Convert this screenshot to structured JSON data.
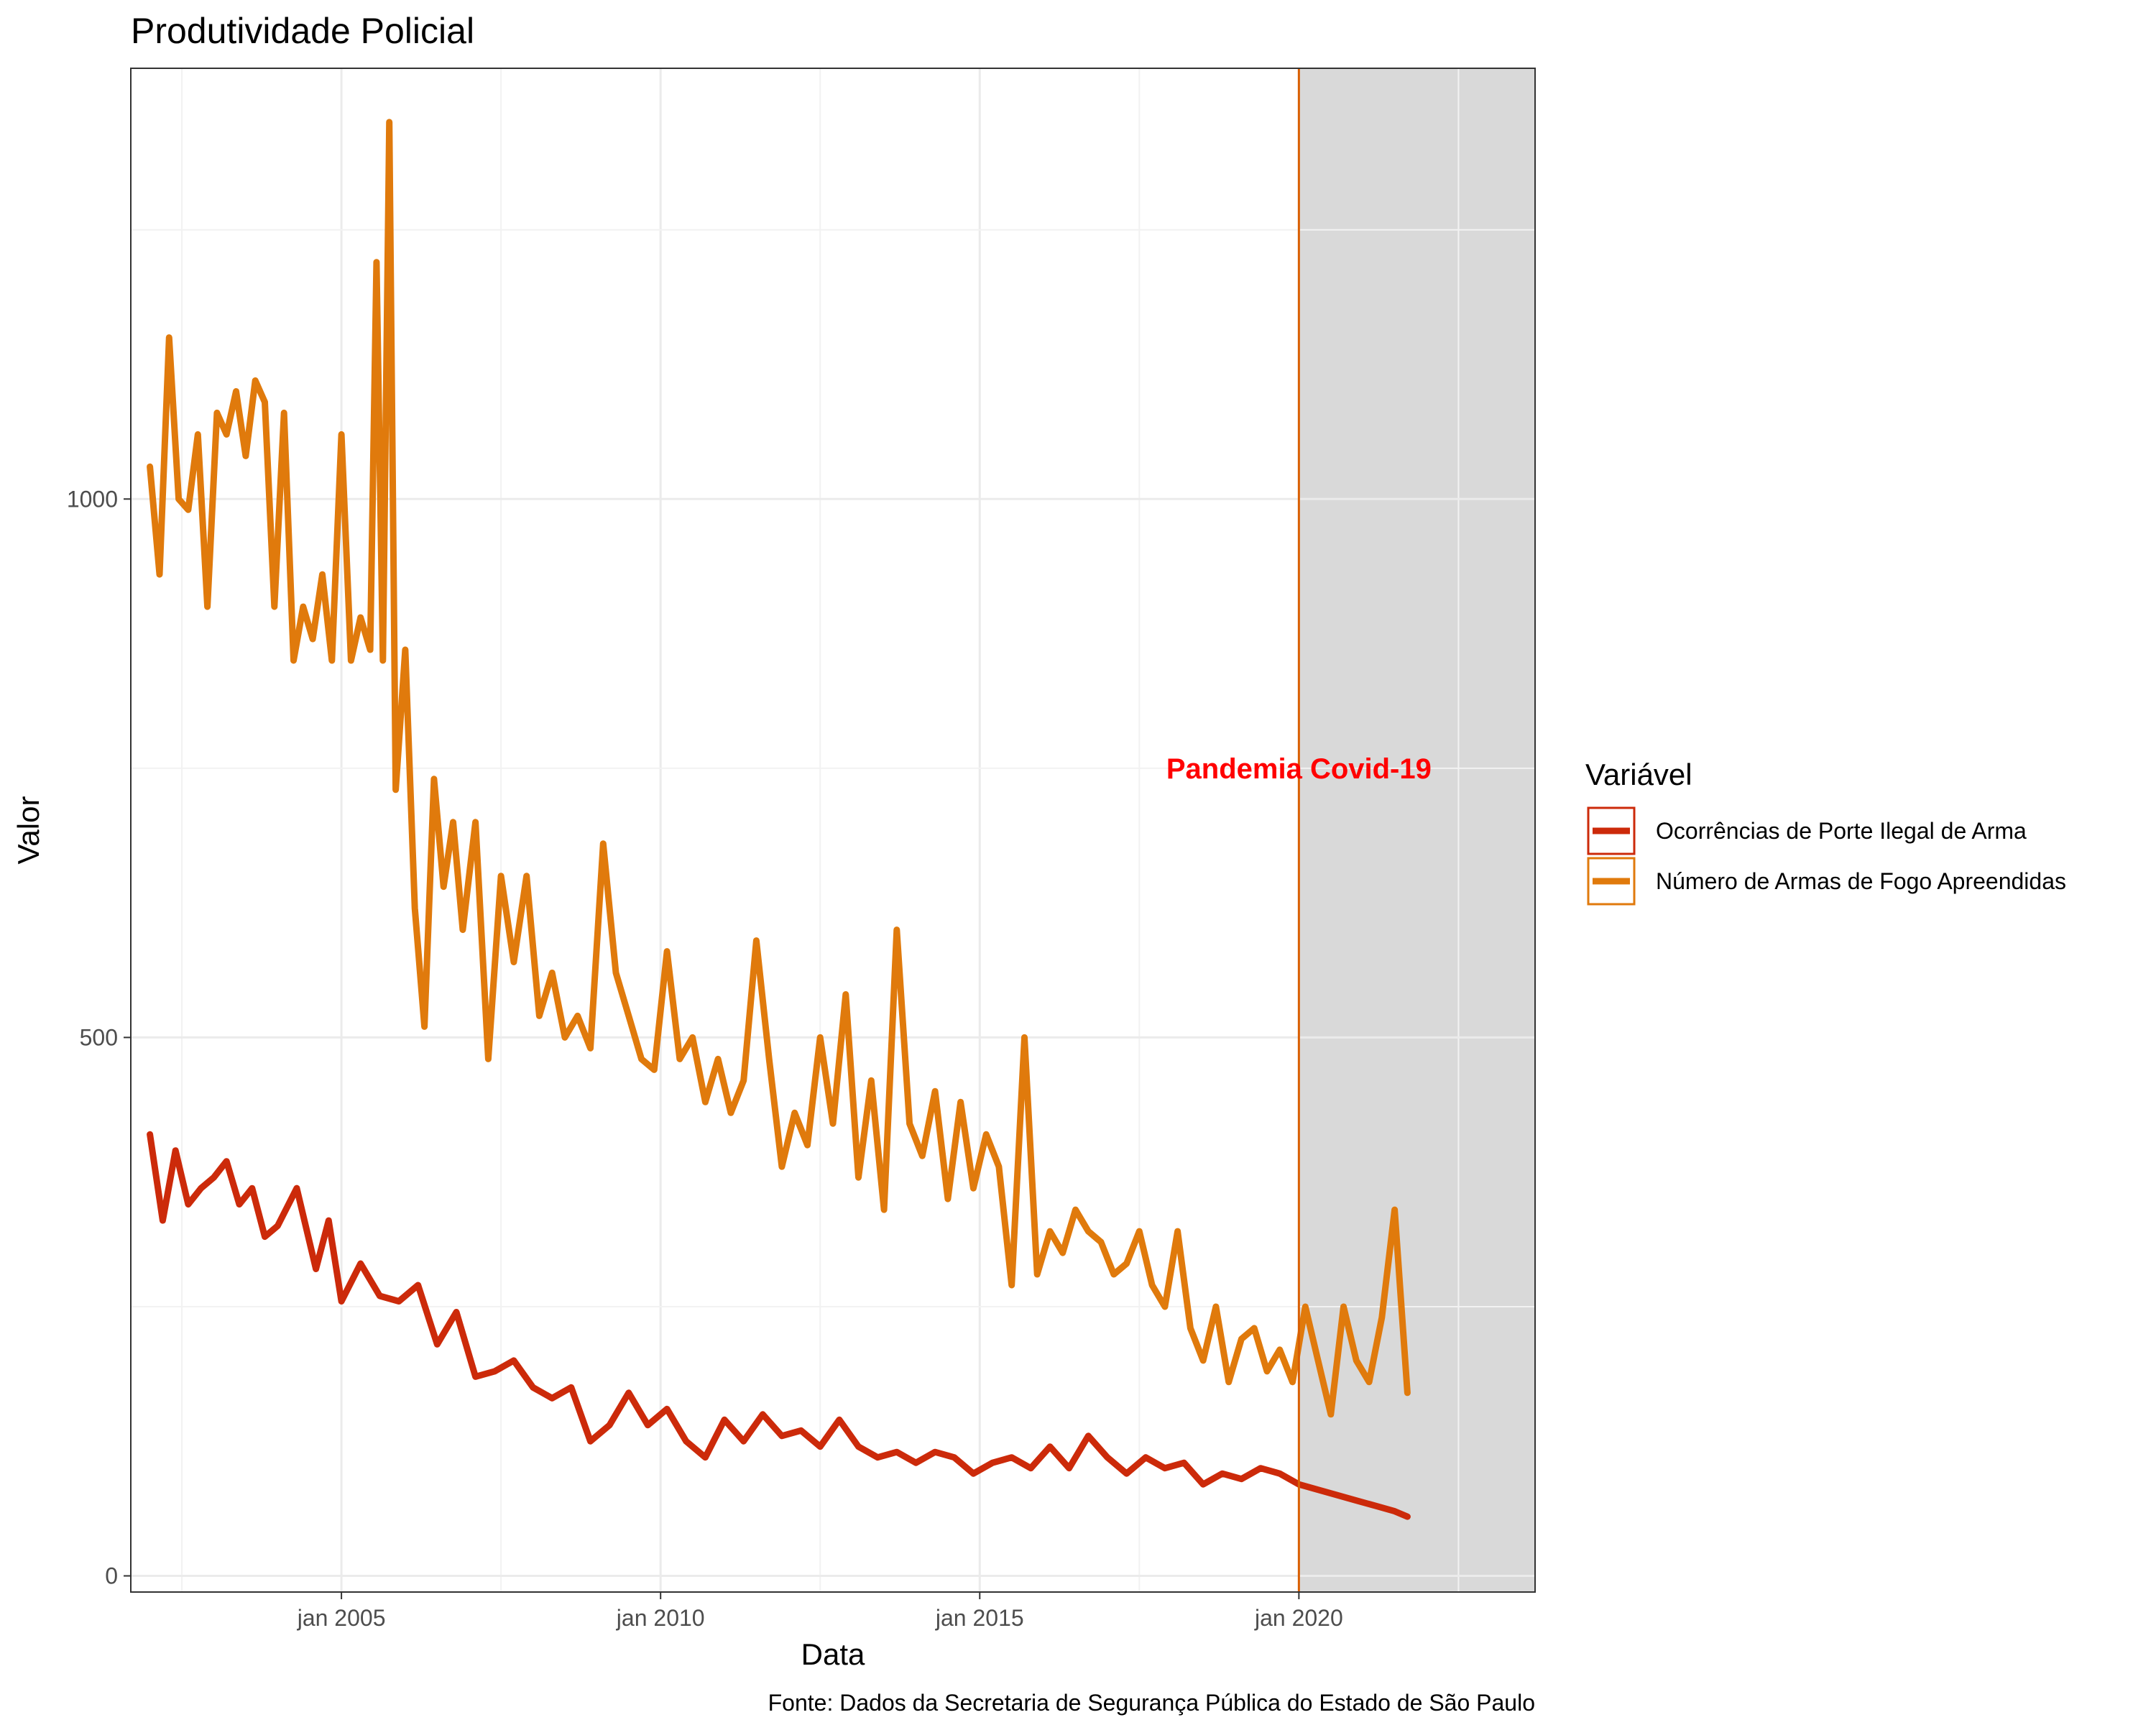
{
  "chart_data": {
    "type": "line",
    "title": "Produtividade Policial",
    "xlabel": "Data",
    "ylabel": "Valor",
    "caption": "Fonte: Dados da Secretaria de Segurança Pública do Estado de São Paulo",
    "legend_title": "Variável",
    "legend_position": "right",
    "grid": true,
    "xlim": [
      2001.7,
      2023.7
    ],
    "ylim": [
      -15,
      1400
    ],
    "x_ticks": [
      {
        "value": 2005,
        "label": "jan 2005"
      },
      {
        "value": 2010,
        "label": "jan 2010"
      },
      {
        "value": 2015,
        "label": "jan 2015"
      },
      {
        "value": 2020,
        "label": "jan 2020"
      }
    ],
    "y_ticks": [
      {
        "value": 0,
        "label": "0"
      },
      {
        "value": 500,
        "label": "500"
      },
      {
        "value": 1000,
        "label": "1000"
      }
    ],
    "shaded_region": {
      "x_start": 2020.0,
      "x_end": 2023.7,
      "color": "#d9d9d9"
    },
    "vline": {
      "x": 2020.0,
      "color": "#d95f02"
    },
    "annotation": {
      "text": "Pandemia Covid-19",
      "x": 2020.0,
      "y": 750,
      "color": "#ff0000"
    },
    "series": [
      {
        "name": "Ocorrências de Porte Ilegal de Arma",
        "color": "#cc2a0a",
        "x": [
          2002.0,
          2002.2,
          2002.4,
          2002.6,
          2002.8,
          2003.0,
          2003.2,
          2003.4,
          2003.6,
          2003.8,
          2004.0,
          2004.3,
          2004.6,
          2004.8,
          2005.0,
          2005.3,
          2005.6,
          2005.9,
          2006.2,
          2006.5,
          2006.8,
          2007.1,
          2007.4,
          2007.7,
          2008.0,
          2008.3,
          2008.6,
          2008.9,
          2009.2,
          2009.5,
          2009.8,
          2010.1,
          2010.4,
          2010.7,
          2011.0,
          2011.3,
          2011.6,
          2011.9,
          2012.2,
          2012.5,
          2012.8,
          2013.1,
          2013.4,
          2013.7,
          2014.0,
          2014.3,
          2014.6,
          2014.9,
          2015.2,
          2015.5,
          2015.8,
          2016.1,
          2016.4,
          2016.7,
          2017.0,
          2017.3,
          2017.6,
          2017.9,
          2018.2,
          2018.5,
          2018.8,
          2019.1,
          2019.4,
          2019.7,
          2020.0,
          2020.3,
          2020.6,
          2020.9,
          2021.2,
          2021.5,
          2021.7
        ],
        "values": [
          410,
          330,
          395,
          345,
          360,
          370,
          385,
          345,
          360,
          315,
          325,
          360,
          285,
          330,
          255,
          290,
          260,
          255,
          270,
          215,
          245,
          185,
          190,
          200,
          175,
          165,
          175,
          125,
          140,
          170,
          140,
          155,
          125,
          110,
          145,
          125,
          150,
          130,
          135,
          120,
          145,
          120,
          110,
          115,
          105,
          115,
          110,
          95,
          105,
          110,
          100,
          120,
          100,
          130,
          110,
          95,
          110,
          100,
          105,
          85,
          95,
          90,
          100,
          95,
          85,
          80,
          75,
          70,
          65,
          60,
          55
        ]
      },
      {
        "name": "Número de Armas de Fogo Apreendidas",
        "color": "#e07a0c",
        "x": [
          2002.0,
          2002.15,
          2002.3,
          2002.45,
          2002.6,
          2002.75,
          2002.9,
          2003.05,
          2003.2,
          2003.35,
          2003.5,
          2003.65,
          2003.8,
          2003.95,
          2004.1,
          2004.25,
          2004.4,
          2004.55,
          2004.7,
          2004.85,
          2005.0,
          2005.15,
          2005.3,
          2005.45,
          2005.55,
          2005.65,
          2005.75,
          2005.85,
          2006.0,
          2006.15,
          2006.3,
          2006.45,
          2006.6,
          2006.75,
          2006.9,
          2007.1,
          2007.3,
          2007.5,
          2007.7,
          2007.9,
          2008.1,
          2008.3,
          2008.5,
          2008.7,
          2008.9,
          2009.1,
          2009.3,
          2009.5,
          2009.7,
          2009.9,
          2010.1,
          2010.3,
          2010.5,
          2010.7,
          2010.9,
          2011.1,
          2011.3,
          2011.5,
          2011.7,
          2011.9,
          2012.1,
          2012.3,
          2012.5,
          2012.7,
          2012.9,
          2013.1,
          2013.3,
          2013.5,
          2013.7,
          2013.9,
          2014.1,
          2014.3,
          2014.5,
          2014.7,
          2014.9,
          2015.1,
          2015.3,
          2015.5,
          2015.7,
          2015.9,
          2016.1,
          2016.3,
          2016.5,
          2016.7,
          2016.9,
          2017.1,
          2017.3,
          2017.5,
          2017.7,
          2017.9,
          2018.1,
          2018.3,
          2018.5,
          2018.7,
          2018.9,
          2019.1,
          2019.3,
          2019.5,
          2019.7,
          2019.9,
          2020.1,
          2020.3,
          2020.5,
          2020.7,
          2020.9,
          2021.1,
          2021.3,
          2021.5,
          2021.7
        ],
        "values": [
          1030,
          930,
          1150,
          1000,
          990,
          1060,
          900,
          1080,
          1060,
          1100,
          1040,
          1110,
          1090,
          900,
          1080,
          850,
          900,
          870,
          930,
          850,
          1060,
          850,
          890,
          860,
          1220,
          850,
          1350,
          730,
          860,
          620,
          510,
          740,
          640,
          700,
          600,
          700,
          480,
          650,
          570,
          650,
          520,
          560,
          500,
          520,
          490,
          680,
          560,
          520,
          480,
          470,
          580,
          480,
          500,
          440,
          480,
          430,
          460,
          590,
          480,
          380,
          430,
          400,
          500,
          420,
          540,
          370,
          460,
          340,
          600,
          420,
          390,
          450,
          350,
          440,
          360,
          410,
          380,
          270,
          500,
          280,
          320,
          300,
          340,
          320,
          310,
          280,
          290,
          320,
          270,
          250,
          320,
          230,
          200,
          250,
          180,
          220,
          230,
          190,
          210,
          180,
          250,
          200,
          150,
          250,
          200,
          180,
          240,
          340,
          170
        ]
      }
    ]
  }
}
